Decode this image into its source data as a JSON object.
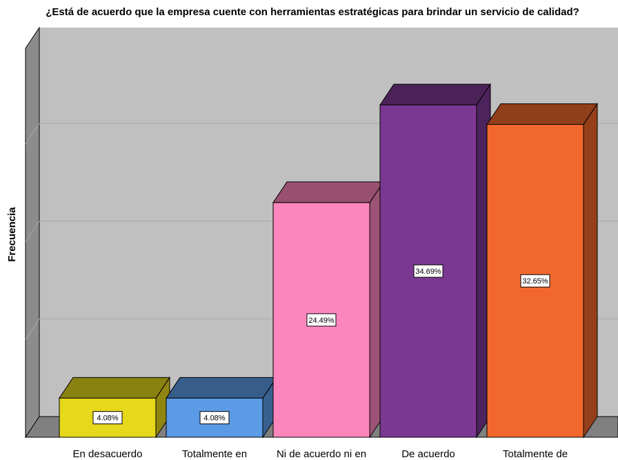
{
  "chart_data": {
    "type": "bar3d",
    "title": "¿Está de acuerdo que la empresa cuente con herramientas estratégicas para brindar un servicio de calidad?",
    "ylabel": "Frecuencia",
    "categories": [
      "En desacuerdo",
      "Totalmente en",
      "Ni de acuerdo ni en",
      "De acuerdo",
      "Totalmente de"
    ],
    "values": [
      4.08,
      4.08,
      24.49,
      34.69,
      32.65
    ],
    "value_labels": [
      "4.08%",
      "4.08%",
      "24.49%",
      "34.69%",
      "32.65%"
    ],
    "colors": [
      "#e6d81a",
      "#5b9be6",
      "#fd86bd",
      "#7b3893",
      "#f2682c"
    ],
    "ylim": [
      0,
      40.6
    ],
    "gridlines": [
      10.2,
      20.4,
      30.6
    ],
    "grid": true
  }
}
